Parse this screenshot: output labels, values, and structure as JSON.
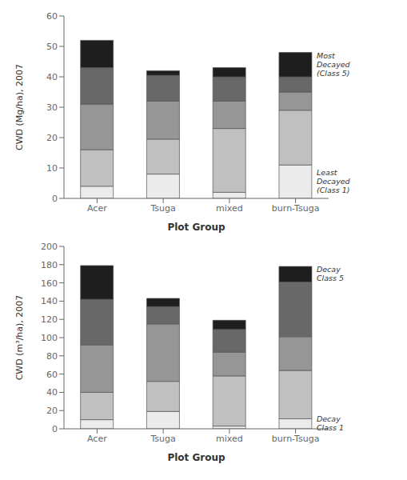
{
  "chart_data": [
    {
      "type": "bar",
      "stacked": true,
      "grid": false,
      "xlabel": "Plot Group",
      "ylabel": "CWD (Mg/ha), 2007",
      "categories": [
        "Acer",
        "Tsuga",
        "mixed",
        "burn-Tsuga"
      ],
      "ylim": [
        0,
        60
      ],
      "yticks": [
        0,
        10,
        20,
        30,
        40,
        50,
        60
      ],
      "series": [
        {
          "color": "#ebebeb",
          "values": [
            4.0,
            8.0,
            2.0,
            11.0
          ]
        },
        {
          "color": "#c0c0c0",
          "values": [
            12.0,
            11.5,
            21.0,
            18.0
          ]
        },
        {
          "color": "#969696",
          "values": [
            15.0,
            12.5,
            9.0,
            6.0
          ]
        },
        {
          "color": "#686868",
          "values": [
            12.0,
            8.5,
            8.0,
            5.0
          ]
        },
        {
          "color": "#1e1e1e",
          "values": [
            9.0,
            1.5,
            3.0,
            8.0
          ]
        }
      ],
      "annotations": [
        "Most\nDecayed\n(Class 5)",
        "Least\nDecayed\n(Class 1)"
      ]
    },
    {
      "type": "bar",
      "stacked": true,
      "grid": false,
      "xlabel": "Plot Group",
      "ylabel": "CWD (m³/ha), 2007",
      "categories": [
        "Acer",
        "Tsuga",
        "mixed",
        "burn-Tsuga"
      ],
      "ylim": [
        0,
        200
      ],
      "yticks": [
        0,
        20,
        40,
        60,
        80,
        100,
        120,
        140,
        160,
        180,
        200
      ],
      "series": [
        {
          "color": "#ebebeb",
          "values": [
            10.0,
            19.0,
            3.0,
            11.0
          ]
        },
        {
          "color": "#c0c0c0",
          "values": [
            30.0,
            33.0,
            55.0,
            53.0
          ]
        },
        {
          "color": "#969696",
          "values": [
            52.0,
            63.0,
            26.0,
            37.0
          ]
        },
        {
          "color": "#686868",
          "values": [
            50.0,
            19.0,
            25.0,
            60.0
          ]
        },
        {
          "color": "#1e1e1e",
          "values": [
            37.0,
            9.0,
            10.0,
            17.0
          ]
        }
      ],
      "annotations": [
        "Decay\nClass 5",
        "Decay\nClass 1"
      ]
    }
  ]
}
